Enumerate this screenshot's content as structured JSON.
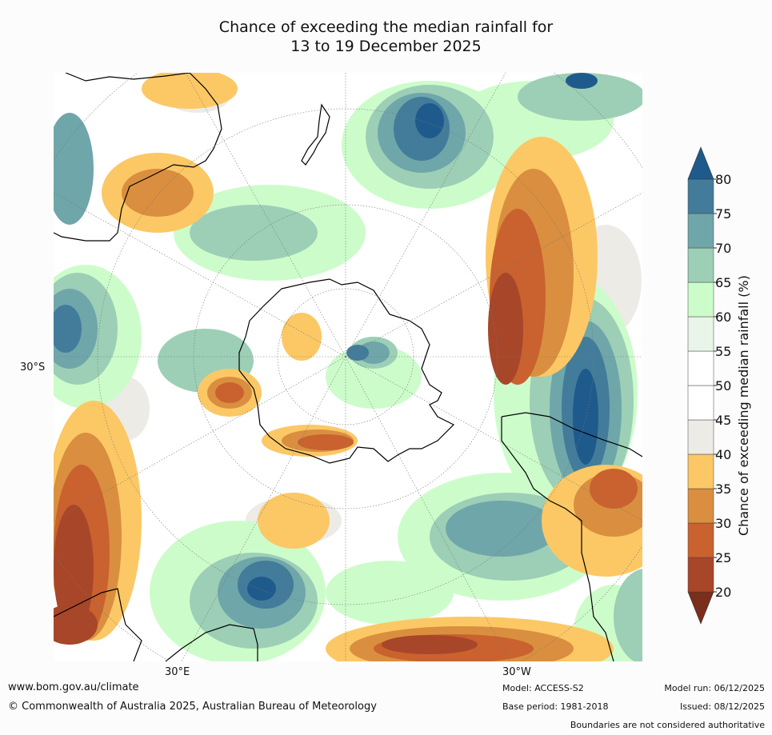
{
  "title": {
    "line1": "Chance of exceeding the median rainfall for",
    "line2": "13 to 19 December 2025"
  },
  "map": {
    "lat_label": "30°S",
    "lon_labels": [
      "30°E",
      "30°W"
    ]
  },
  "colorbar": {
    "label": "Chance of exceeding median rainfall (%)",
    "ticks": [
      "80",
      "75",
      "70",
      "65",
      "60",
      "55",
      "50",
      "45",
      "40",
      "35",
      "30",
      "25",
      "20"
    ],
    "colors": [
      "#7a2e1b",
      "#a8462a",
      "#c9622f",
      "#d98f3f",
      "#fcc865",
      "#ecebe6",
      "#ffffff",
      "#ffffff",
      "#eaf5e9",
      "#cdfccb",
      "#9ccfb6",
      "#6fa6aa",
      "#437c9a",
      "#1f5a8c"
    ]
  },
  "footer": {
    "url": "www.bom.gov.au/climate",
    "copyright": "© Commonwealth of Australia 2025, Australian Bureau of Meteorology",
    "model": "Model: ACCESS-S2",
    "model_run": "Model run: 06/12/2025",
    "base_period": "Base period: 1981-2018",
    "issued": "Issued: 08/12/2025",
    "disclaimer": "Boundaries are not considered authoritative"
  }
}
